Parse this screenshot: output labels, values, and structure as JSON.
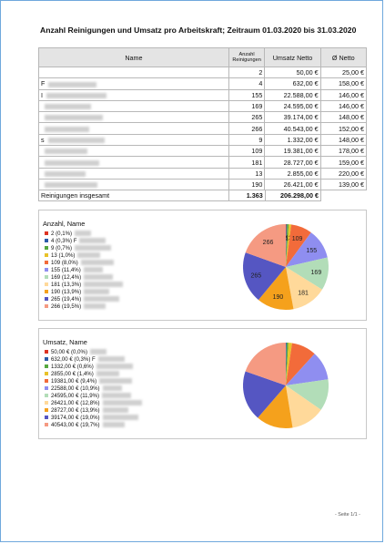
{
  "report": {
    "title": "Anzahl Reinigungen und Umsatz pro Arbeitskraft; Zeitraum 01.03.2020 bis 31.03.2020",
    "headers": {
      "name": "Name",
      "anzahl": "Anzahl Reinigungen",
      "umsatz": "Umsatz Netto",
      "avg": "Ø Netto"
    },
    "rows": [
      {
        "name": "",
        "count": "2",
        "umsatz": "50,00 €",
        "avg": "25,00 €"
      },
      {
        "name": "F",
        "count": "4",
        "umsatz": "632,00 €",
        "avg": "158,00 €"
      },
      {
        "name": "I",
        "count": "155",
        "umsatz": "22.588,00 €",
        "avg": "146,00 €"
      },
      {
        "name": "",
        "count": "169",
        "umsatz": "24.595,00 €",
        "avg": "146,00 €"
      },
      {
        "name": "",
        "count": "265",
        "umsatz": "39.174,00 €",
        "avg": "148,00 €"
      },
      {
        "name": "",
        "count": "266",
        "umsatz": "40.543,00 €",
        "avg": "152,00 €"
      },
      {
        "name": "s",
        "count": "9",
        "umsatz": "1.332,00 €",
        "avg": "148,00 €"
      },
      {
        "name": "",
        "count": "109",
        "umsatz": "19.381,00 €",
        "avg": "178,00 €"
      },
      {
        "name": "",
        "count": "181",
        "umsatz": "28.727,00 €",
        "avg": "159,00 €"
      },
      {
        "name": "",
        "count": "13",
        "umsatz": "2.855,00 €",
        "avg": "220,00 €"
      },
      {
        "name": "",
        "count": "190",
        "umsatz": "26.421,00 €",
        "avg": "139,00 €"
      }
    ],
    "total": {
      "label": "Reinigungen insgesamt",
      "count": "1.363",
      "umsatz": "206.298,00 €"
    },
    "footer": "- Seite 1/1 -"
  },
  "chart_data": [
    {
      "type": "pie",
      "title": "Anzahl, Name",
      "legend": [
        "2 (0,1%)",
        "4 (0,3%) F",
        "9 (0,7%)",
        "13 (1,0%)",
        "109 (8,0%)",
        "155 (11,4%)",
        "169 (12,4%)",
        "181 (13,3%)",
        "190 (13,9%)",
        "265 (19,4%)",
        "266 (19,5%)"
      ],
      "values": [
        2,
        4,
        9,
        13,
        109,
        155,
        169,
        181,
        190,
        265,
        266
      ],
      "colors": [
        "#dd3322",
        "#2a5ba8",
        "#55a83f",
        "#e8c229",
        "#f26b3a",
        "#8f8ef0",
        "#b2ddb8",
        "#ffd99a",
        "#f5a11c",
        "#5556c2",
        "#f59a82"
      ]
    },
    {
      "type": "pie",
      "title": "Umsatz, Name",
      "legend": [
        "50,00 € (0,0%)",
        "632,00 € (0,3%) F",
        "1332,00 € (0,6%)",
        "2855,00 € (1,4%)",
        "19381,00 € (9,4%)",
        "22588,00 € (10,9%)",
        "24595,00 € (11,9%)",
        "26421,00 € (12,8%)",
        "28727,00 € (13,9%)",
        "39174,00 € (19,0%)",
        "40543,00 € (19,7%)"
      ],
      "values": [
        50,
        632,
        1332,
        2855,
        19381,
        22588,
        24595,
        26421,
        28727,
        39174,
        40543
      ],
      "colors": [
        "#dd3322",
        "#2a5ba8",
        "#55a83f",
        "#e8c229",
        "#f26b3a",
        "#8f8ef0",
        "#b2ddb8",
        "#ffd99a",
        "#f5a11c",
        "#5556c2",
        "#f59a82"
      ]
    }
  ]
}
